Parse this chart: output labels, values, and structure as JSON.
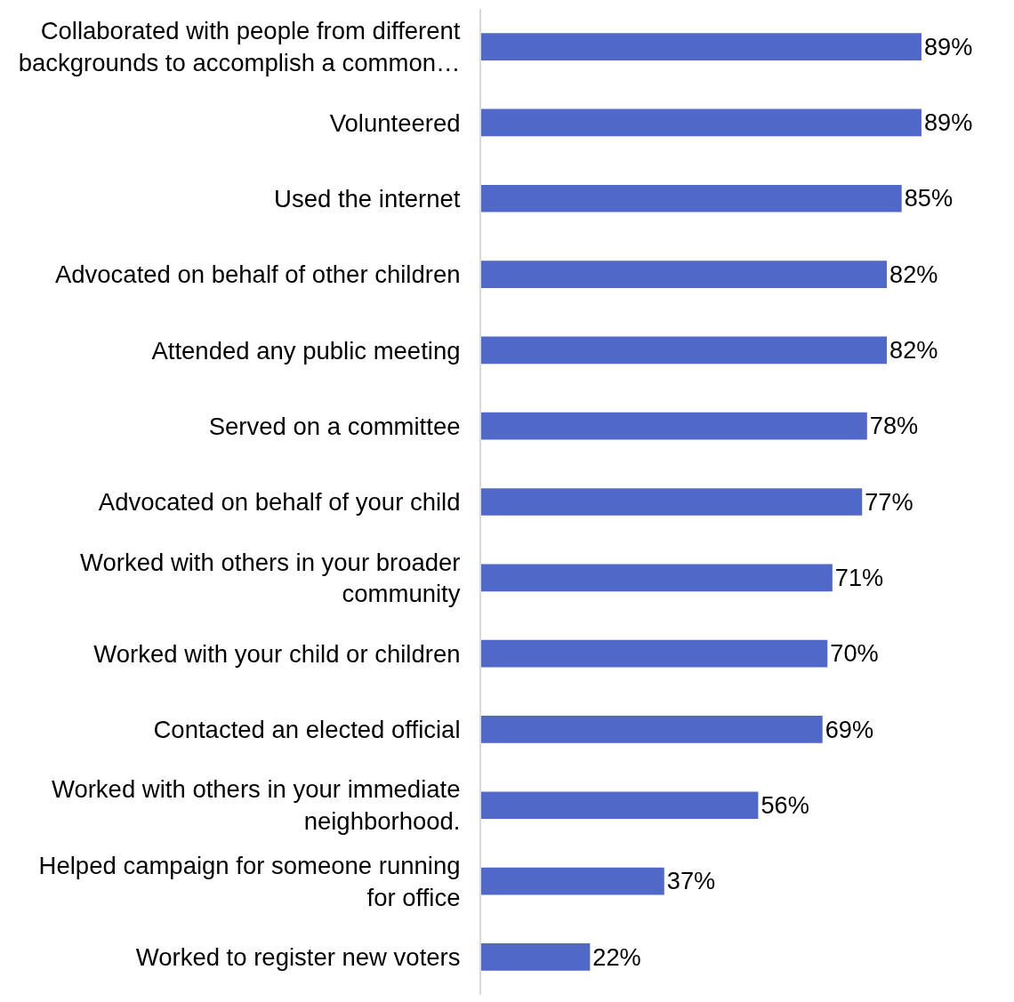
{
  "chart_data": {
    "type": "bar",
    "orientation": "horizontal",
    "categories": [
      "Collaborated with people from different backgrounds to accomplish a common…",
      "Volunteered",
      "Used the internet",
      "Advocated on behalf of other children",
      "Attended any public meeting",
      "Served on a committee",
      "Advocated on behalf of your child",
      "Worked with others in your broader community",
      "Worked with your child or children",
      "Contacted an elected official",
      "Worked with others in your immediate neighborhood.",
      "Helped campaign for someone running for office",
      "Worked to register new voters"
    ],
    "values": [
      89,
      89,
      85,
      82,
      82,
      78,
      77,
      71,
      70,
      69,
      56,
      37,
      22
    ],
    "value_labels": [
      "89%",
      "89%",
      "85%",
      "82%",
      "82%",
      "78%",
      "77%",
      "71%",
      "70%",
      "69%",
      "56%",
      "37%",
      "22%"
    ],
    "color": "#5068c8",
    "tick_labels": "y",
    "grid": false
  }
}
